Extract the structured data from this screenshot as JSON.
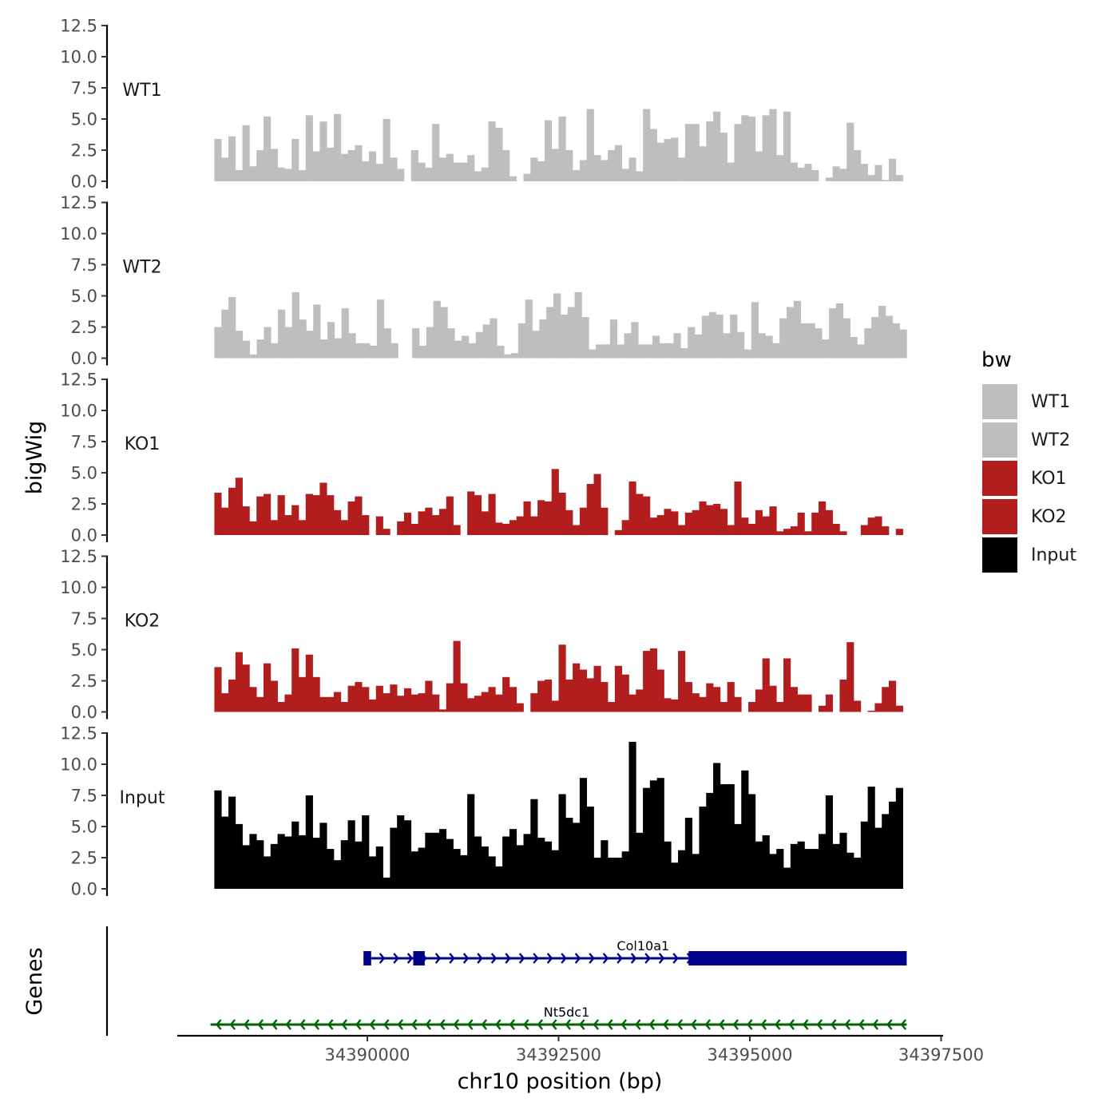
{
  "chart_data": {
    "type": "area",
    "ylabel": "bigWig",
    "xlabel": "chr10 position (bp)",
    "ylim": [
      0,
      12.5
    ],
    "y_ticks": [
      "0.0",
      "2.5",
      "5.0",
      "7.5",
      "10.0",
      "12.5"
    ],
    "x_range": [
      34387500,
      34397500
    ],
    "x_ticks": [
      "34390000",
      "34392500",
      "34395000",
      "34397500"
    ],
    "x_tick_values": [
      34390000,
      34392500,
      34395000,
      34397500
    ],
    "genes_label": "Genes",
    "legend": {
      "title": "bw",
      "entries": [
        {
          "label": "WT1",
          "color": "#bebebe"
        },
        {
          "label": "WT2",
          "color": "#bebebe"
        },
        {
          "label": "KO1",
          "color": "#b21e1e"
        },
        {
          "label": "KO2",
          "color": "#b21e1e"
        },
        {
          "label": "Input",
          "color": "#000000"
        }
      ]
    },
    "series": [
      {
        "name": "WT1",
        "color": "#bebebe",
        "x_start": 34388000,
        "x_end": 34397000,
        "values": [
          3.4,
          1.9,
          3.6,
          0.9,
          4.5,
          1.2,
          2.5,
          5.2,
          2.6,
          1.1,
          1.0,
          3.4,
          0.9,
          5.3,
          2.4,
          4.8,
          2.7,
          5.4,
          2.2,
          2.5,
          2.9,
          1.6,
          2.4,
          1.4,
          5.0,
          1.9,
          1.0,
          0.0,
          2.5,
          1.5,
          1.1,
          4.6,
          1.9,
          2.2,
          1.5,
          1.5,
          2.1,
          0.8,
          1.1,
          4.8,
          4.3,
          2.5,
          0.4,
          0.0,
          0.6,
          1.9,
          1.6,
          4.9,
          2.6,
          5.2,
          2.5,
          0.9,
          1.7,
          5.8,
          2.1,
          1.7,
          2.5,
          2.9,
          1.0,
          1.9,
          0.8,
          5.8,
          4.2,
          3.1,
          3.4,
          3.5,
          1.9,
          4.6,
          4.6,
          2.8,
          4.8,
          5.6,
          3.9,
          1.5,
          4.6,
          5.3,
          5.2,
          2.4,
          5.3,
          5.8,
          2.1,
          5.6,
          1.5,
          1.1,
          1.4,
          0.9,
          0.0,
          0.3,
          1.2,
          1.0,
          4.7,
          2.5,
          1.4,
          0.5,
          1.3,
          0.1,
          1.8,
          0.5
        ]
      },
      {
        "name": "WT2",
        "color": "#bebebe",
        "x_start": 34388000,
        "x_end": 34397050,
        "values": [
          2.5,
          3.9,
          4.9,
          2.2,
          1.4,
          0.3,
          1.5,
          2.5,
          1.2,
          3.9,
          2.5,
          5.3,
          3.1,
          2.2,
          4.3,
          1.5,
          2.9,
          1.6,
          4.0,
          2.0,
          1.2,
          1.2,
          1.0,
          4.7,
          2.4,
          1.2,
          0.0,
          0.0,
          2.4,
          1.0,
          2.5,
          4.6,
          4.1,
          2.4,
          1.4,
          1.8,
          1.2,
          2.1,
          2.7,
          3.2,
          1.0,
          0.3,
          0.4,
          2.8,
          4.7,
          2.2,
          3.1,
          4.1,
          5.2,
          3.5,
          4.1,
          5.3,
          3.3,
          0.7,
          1.1,
          1.1,
          3.1,
          1.1,
          2.0,
          2.9,
          1.1,
          1.1,
          1.8,
          1.2,
          1.2,
          2.0,
          0.8,
          2.5,
          1.9,
          3.4,
          3.7,
          3.5,
          2.0,
          3.5,
          2.1,
          0.7,
          4.5,
          2.0,
          1.8,
          1.2,
          3.2,
          4.1,
          4.6,
          2.8,
          2.8,
          2.4,
          1.5,
          4.0,
          4.4,
          3.2,
          1.7,
          1.1,
          2.4,
          3.3,
          4.2,
          3.4,
          2.8,
          2.3
        ]
      },
      {
        "name": "KO1",
        "color": "#b21e1e",
        "x_start": 34388000,
        "x_end": 34397000,
        "values": [
          3.4,
          2.2,
          3.8,
          4.6,
          2.3,
          1.1,
          3.1,
          3.3,
          1.2,
          3.2,
          1.6,
          2.4,
          1.2,
          3.3,
          3.2,
          4.2,
          3.2,
          2.0,
          1.2,
          2.7,
          3.1,
          1.6,
          0.0,
          1.5,
          0.5,
          0.0,
          1.1,
          1.8,
          0.9,
          1.9,
          2.2,
          1.6,
          2.1,
          3.1,
          0.8,
          0.0,
          3.5,
          3.2,
          1.9,
          3.3,
          1.0,
          0.9,
          1.2,
          1.5,
          2.7,
          1.5,
          2.8,
          2.7,
          5.3,
          3.4,
          2.0,
          0.8,
          2.2,
          4.1,
          4.9,
          2.2,
          0.0,
          0.4,
          1.2,
          4.3,
          3.3,
          3.1,
          1.4,
          1.6,
          2.1,
          1.9,
          0.8,
          1.8,
          2.0,
          2.7,
          2.4,
          2.5,
          2.1,
          0.8,
          4.3,
          1.4,
          0.9,
          2.0,
          1.5,
          2.3,
          0.3,
          0.5,
          0.7,
          1.8,
          0.3,
          1.8,
          2.7,
          2.0,
          0.9,
          0.3,
          0.0,
          0.0,
          0.8,
          1.4,
          1.5,
          0.7,
          0.0,
          0.5
        ]
      },
      {
        "name": "KO2",
        "color": "#b21e1e",
        "x_start": 34388000,
        "x_end": 34397000,
        "values": [
          3.6,
          1.5,
          2.6,
          4.8,
          3.8,
          2.0,
          1.2,
          3.9,
          2.5,
          0.8,
          1.4,
          5.1,
          2.8,
          4.6,
          2.8,
          1.2,
          1.2,
          1.6,
          0.8,
          2.1,
          2.4,
          2.0,
          1.0,
          2.1,
          1.5,
          2.2,
          1.3,
          1.9,
          1.4,
          1.5,
          2.5,
          1.4,
          0.2,
          2.3,
          5.7,
          2.3,
          1.1,
          1.3,
          1.6,
          2.0,
          1.4,
          2.8,
          2.0,
          0.7,
          0.0,
          1.5,
          2.5,
          2.6,
          0.9,
          5.4,
          2.6,
          3.9,
          3.4,
          2.7,
          3.7,
          2.4,
          0.8,
          3.7,
          3.0,
          1.4,
          1.8,
          4.9,
          5.1,
          3.4,
          1.1,
          1.0,
          4.9,
          2.4,
          1.5,
          1.2,
          2.3,
          2.0,
          0.8,
          2.4,
          1.2,
          0.0,
          0.8,
          1.8,
          4.3,
          2.1,
          0.8,
          4.3,
          2.0,
          1.4,
          1.4,
          0.0,
          0.5,
          1.4,
          0.0,
          2.6,
          5.6,
          0.9,
          0.0,
          0.1,
          0.7,
          2.0,
          2.5,
          0.5
        ]
      },
      {
        "name": "Input",
        "color": "#000000",
        "x_start": 34388000,
        "x_end": 34397000,
        "values": [
          7.9,
          5.8,
          7.4,
          5.2,
          3.5,
          4.4,
          3.9,
          2.6,
          3.6,
          4.4,
          4.2,
          5.4,
          4.3,
          7.5,
          4.1,
          5.3,
          3.2,
          2.3,
          3.9,
          5.5,
          3.8,
          5.9,
          2.6,
          3.4,
          0.9,
          4.9,
          5.9,
          5.5,
          3.0,
          3.3,
          4.5,
          4.5,
          4.8,
          4.0,
          3.2,
          2.7,
          7.6,
          4.2,
          3.4,
          2.6,
          1.8,
          4.2,
          4.8,
          3.5,
          4.4,
          7.2,
          4.1,
          3.8,
          3.1,
          7.6,
          5.7,
          5.3,
          8.9,
          6.6,
          2.5,
          3.9,
          2.5,
          2.5,
          3.0,
          11.8,
          4.5,
          8.1,
          8.7,
          8.9,
          3.8,
          2.1,
          3.1,
          5.7,
          2.8,
          6.6,
          7.7,
          10.1,
          8.4,
          8.4,
          5.2,
          9.5,
          7.6,
          3.8,
          4.3,
          2.8,
          3.2,
          1.7,
          3.6,
          3.8,
          3.2,
          3.2,
          4.4,
          7.5,
          3.6,
          4.5,
          2.9,
          2.5,
          5.4,
          8.2,
          4.9,
          6.0,
          7.0,
          8.1
        ]
      }
    ],
    "genes": [
      {
        "name": "Col10a1",
        "strand": "+",
        "color": "#00008b",
        "start": 34389950,
        "end": 34397050,
        "exons": [
          {
            "start": 34389950,
            "end": 34390050
          },
          {
            "start": 34390600,
            "end": 34390750
          },
          {
            "start": 34394200,
            "end": 34397050
          }
        ]
      },
      {
        "name": "Nt5dc1",
        "strand": "-",
        "color": "#006400",
        "start": 34387950,
        "end": 34397050,
        "exons": []
      }
    ]
  }
}
